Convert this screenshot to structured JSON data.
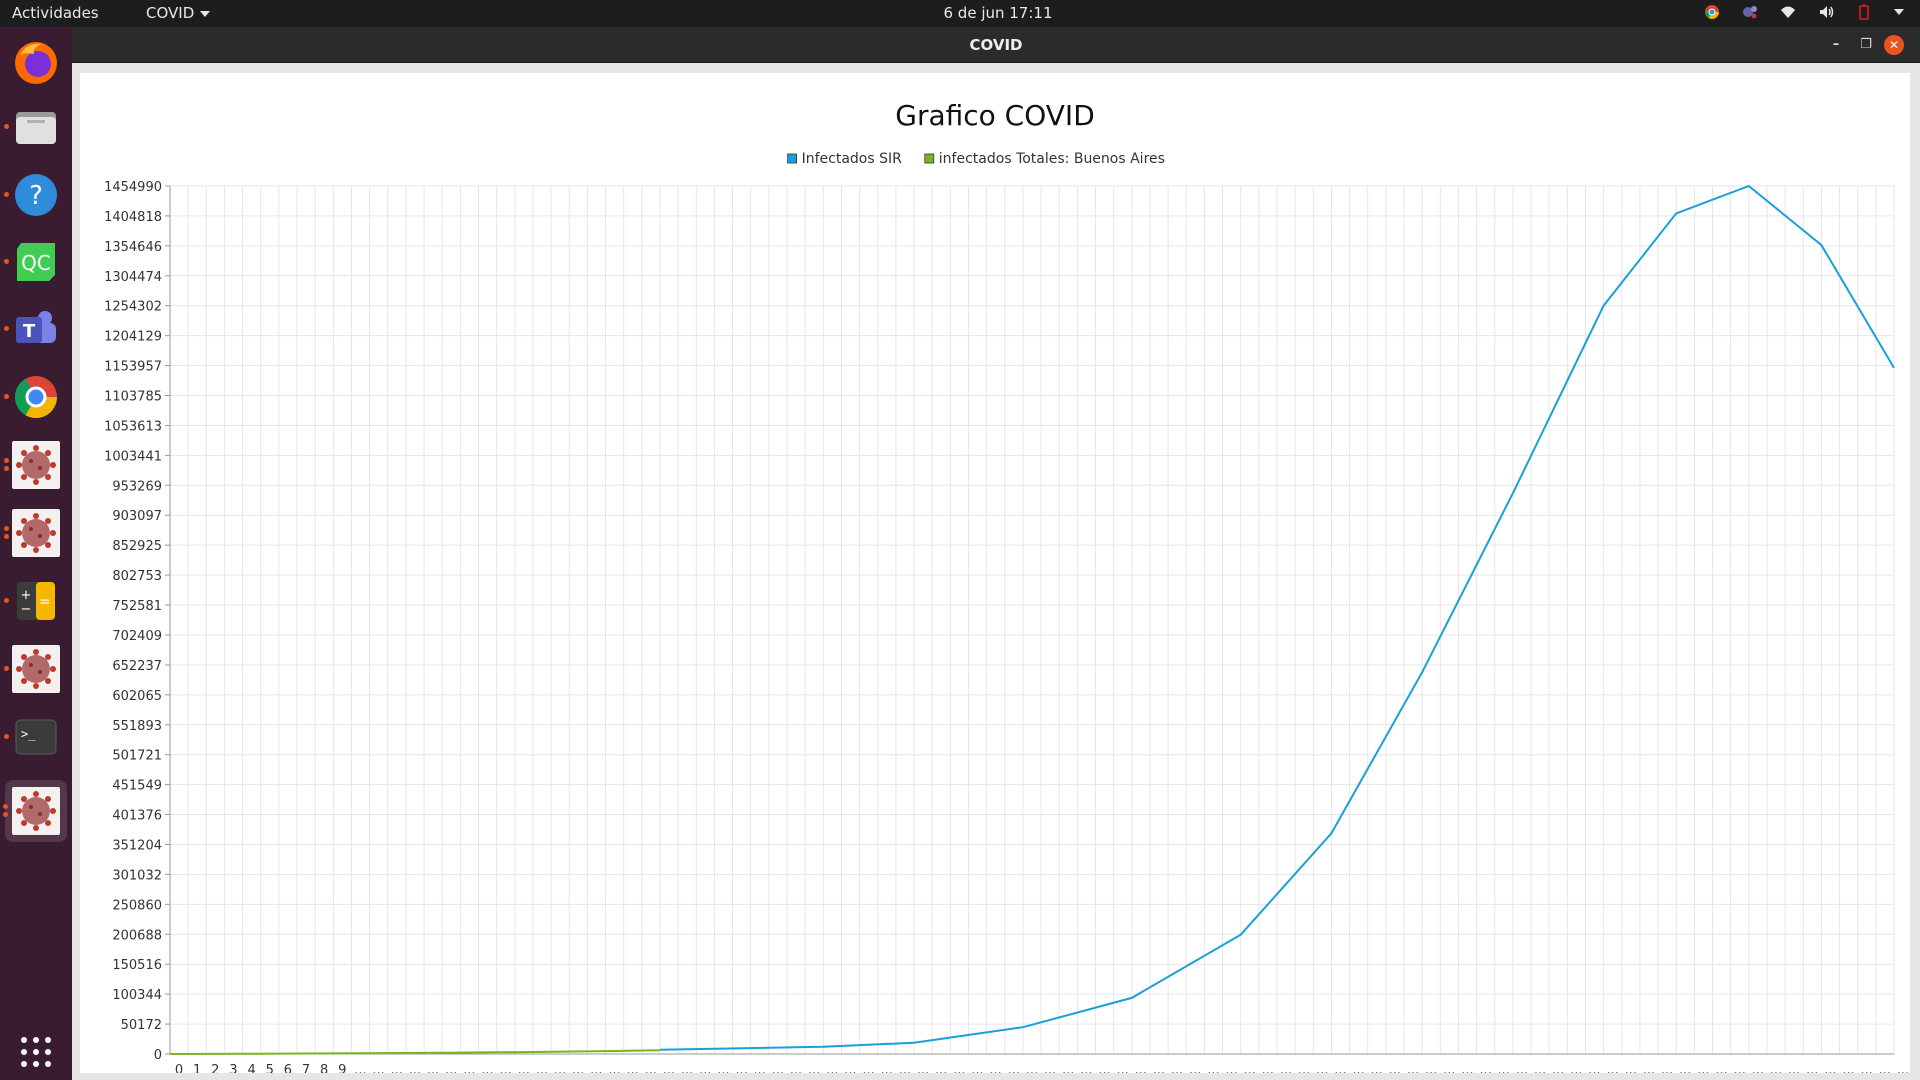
{
  "topbar": {
    "activities": "Actividades",
    "app_menu": "COVID",
    "clock": "6 de jun  17:11"
  },
  "dock": {
    "items": [
      "firefox-icon",
      "files-icon",
      "help-icon",
      "qtcreator-icon",
      "teams-icon",
      "chrome-icon",
      "covid-app-icon",
      "covid-app-icon",
      "calculator-icon",
      "covid-app-icon",
      "terminal-icon",
      "covid-app-icon"
    ],
    "qc_label": "QC",
    "help_label": "?",
    "terminal_label": ">_",
    "teams_label": "T"
  },
  "window": {
    "title": "COVID",
    "close_label": "✕",
    "max_label": "❐",
    "min_label": "–"
  },
  "chart_data": {
    "type": "line",
    "title": "Grafico COVID",
    "legend_position": "top-center",
    "grid": true,
    "ylim": [
      0,
      1454990
    ],
    "y_ticks": [
      "0",
      "50172",
      "100344",
      "150516",
      "200688",
      "250860",
      "301032",
      "351204",
      "401376",
      "451549",
      "501721",
      "551893",
      "602065",
      "652237",
      "702409",
      "752581",
      "802753",
      "852925",
      "903097",
      "953269",
      "1003441",
      "1053613",
      "1103785",
      "1153957",
      "1204129",
      "1254302",
      "1304474",
      "1354646",
      "1404818",
      "1454990"
    ],
    "x_tick_labels_numeric": [
      "0",
      "1",
      "2",
      "3",
      "4",
      "5",
      "6",
      "7",
      "8",
      "9"
    ],
    "x_tick_ellipsis": "...",
    "x_count": 91,
    "series": [
      {
        "name": "Infectados SIR",
        "color": "#1a9fd9",
        "points": [
          [
            27,
            7000
          ],
          [
            36,
            12000
          ],
          [
            41,
            19000
          ],
          [
            47,
            45000
          ],
          [
            53,
            94000
          ],
          [
            59,
            200000
          ],
          [
            64,
            370000
          ],
          [
            69,
            640000
          ],
          [
            74,
            940000
          ],
          [
            79,
            1254302
          ],
          [
            83,
            1409000
          ],
          [
            87,
            1454990
          ],
          [
            91,
            1356000
          ],
          [
            95,
            1150000
          ]
        ]
      },
      {
        "name": "infectados Totales: Buenos Aires",
        "color": "#7ab51d",
        "points": [
          [
            0,
            0
          ],
          [
            5,
            500
          ],
          [
            10,
            1200
          ],
          [
            15,
            2100
          ],
          [
            20,
            3300
          ],
          [
            25,
            5200
          ],
          [
            27,
            6300
          ]
        ]
      }
    ]
  }
}
